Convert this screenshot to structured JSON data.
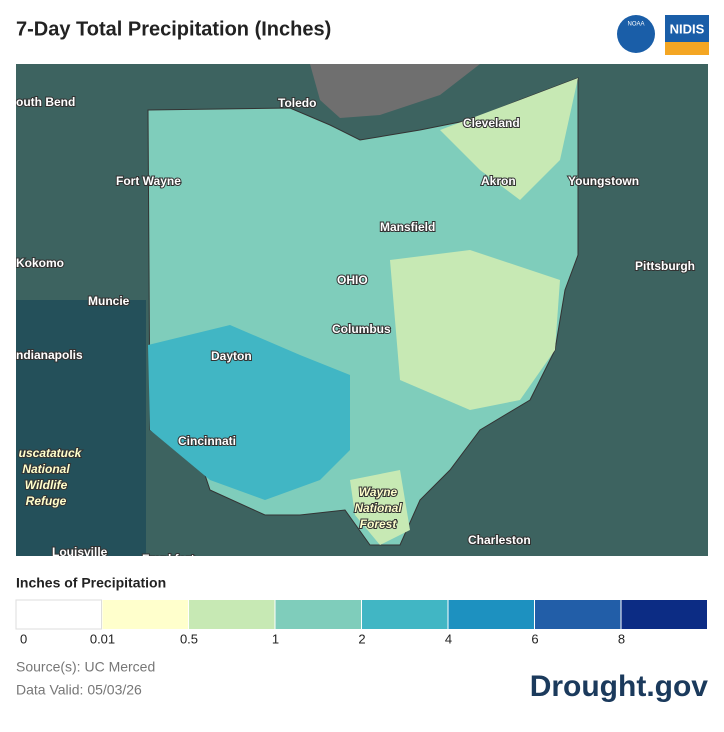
{
  "header": {
    "title": "7-Day Total Precipitation (Inches)",
    "logos": [
      "NOAA",
      "NIDIS"
    ]
  },
  "map": {
    "places": [
      "outh Bend",
      "Toledo",
      "Cleveland",
      "Fort Wayne",
      "Akron",
      "Youngstown",
      "Mansfield",
      "Kokomo",
      "OHIO",
      "Pittsburgh",
      "Muncie",
      "Columbus",
      "ndianapolis",
      "Dayton",
      "Cincinnati",
      "uscatatuck",
      "National",
      "Wildlife",
      "Refuge",
      "Wayne",
      "National",
      "Forest",
      "Charleston",
      "Louisville",
      "Frankfort"
    ]
  },
  "legend": {
    "title": "Inches of Precipitation",
    "colors": [
      "#ffffff",
      "#ffffcc",
      "#c7e9b4",
      "#7fcdbb",
      "#41b6c4",
      "#1d91c0",
      "#225ea8",
      "#0c2c84"
    ],
    "ticks": [
      0,
      0.01,
      0.5,
      1,
      2,
      4,
      6,
      8
    ]
  },
  "footer": {
    "source": "Source(s): UC Merced",
    "valid": "Data Valid: 05/03/26",
    "brand": "Drought.gov"
  }
}
